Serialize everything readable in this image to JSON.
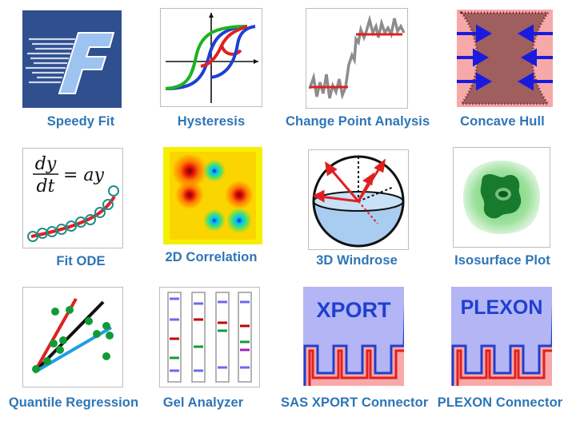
{
  "apps": [
    {
      "label": "Speedy Fit",
      "icon": "speedy-fit-icon"
    },
    {
      "label": "Hysteresis",
      "icon": "hysteresis-icon"
    },
    {
      "label": "Change Point Analysis",
      "icon": "change-point-icon"
    },
    {
      "label": "Concave Hull",
      "icon": "concave-hull-icon"
    },
    {
      "label": "Fit ODE",
      "icon": "fit-ode-icon"
    },
    {
      "label": "2D Correlation",
      "icon": "2d-correlation-icon"
    },
    {
      "label": "3D Windrose",
      "icon": "3d-windrose-icon"
    },
    {
      "label": "Isosurface Plot",
      "icon": "isosurface-icon"
    },
    {
      "label": "Quantile Regression",
      "icon": "quantile-regression-icon"
    },
    {
      "label": "Gel Analyzer",
      "icon": "gel-analyzer-icon"
    },
    {
      "label": "SAS XPORT Connector",
      "icon": "sas-xport-icon"
    },
    {
      "label": "PLEXON Connector",
      "icon": "plexon-icon"
    }
  ],
  "icon_text": {
    "ode_num": "dy",
    "ode_den": "dt",
    "ode_rhs": "= ay",
    "xport": "XPORT",
    "plexon": "PLEXON"
  },
  "colors": {
    "label": "#2e75b6",
    "speedy_bg": "#2f4f8f",
    "red": "#e02020",
    "green": "#1db31d",
    "blue": "#1f3fd0",
    "connector_top": "#b3b5f5",
    "connector_bottom": "#f7a8a8"
  }
}
